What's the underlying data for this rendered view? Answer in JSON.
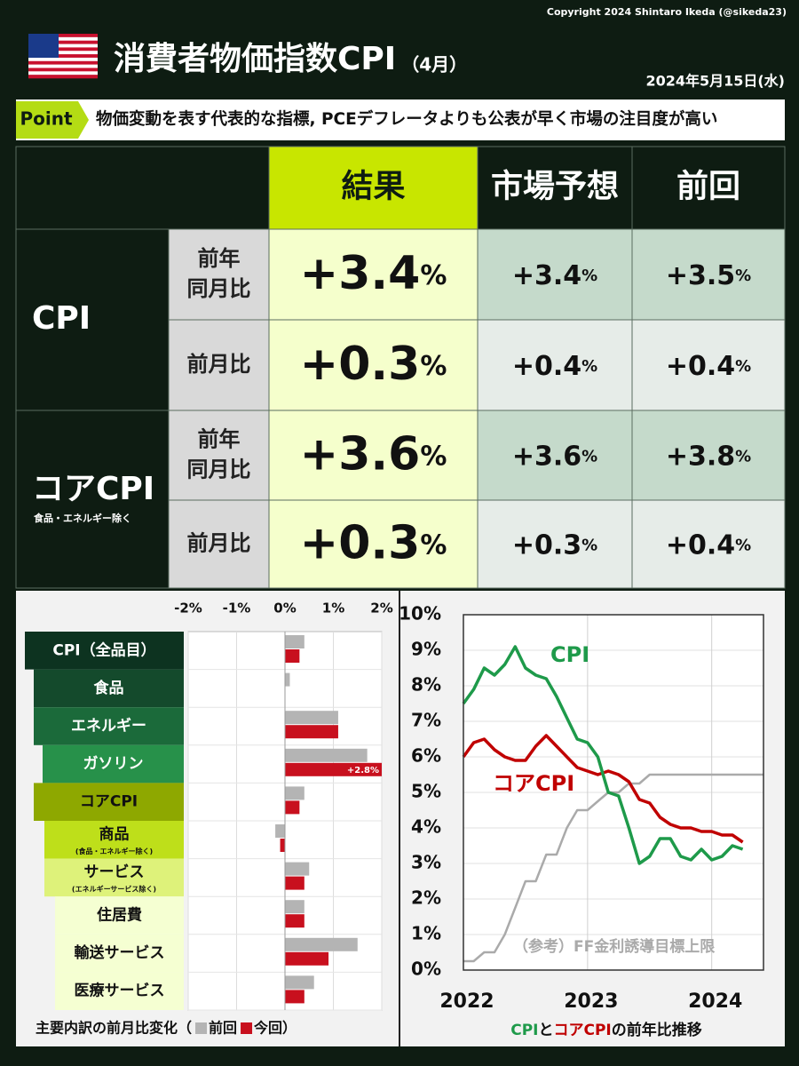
{
  "header": {
    "copyright": "Copyright 2024 Shintaro Ikeda (@sikeda23)",
    "title": "消費者物価指数CPI",
    "title_note": "（4月）",
    "date": "2024年5月15日(水)"
  },
  "point": {
    "label": "Point",
    "text": "物価変動を表す代表的な指標, PCEデフレータよりも公表が早く市場の注目度が高い"
  },
  "table": {
    "columns": [
      "結果",
      "市場予想",
      "前回"
    ],
    "unit": "%",
    "groups": [
      {
        "name": "CPI",
        "rows": [
          {
            "label": [
              "前年",
              "同月比"
            ],
            "values": [
              "+3.4",
              "+3.4",
              "+3.5"
            ]
          },
          {
            "label": [
              "前月比"
            ],
            "values": [
              "+0.3",
              "+0.4",
              "+0.4"
            ]
          }
        ]
      },
      {
        "name": "コアCPI",
        "note": "食品・エネルギー除く",
        "rows": [
          {
            "label": [
              "前年",
              "同月比"
            ],
            "values": [
              "+3.6",
              "+3.6",
              "+3.8"
            ]
          },
          {
            "label": [
              "前月比"
            ],
            "values": [
              "+0.3",
              "+0.3",
              "+0.4"
            ]
          }
        ]
      }
    ]
  },
  "chart_data": [
    {
      "type": "bar",
      "orientation": "horizontal",
      "categories": [
        "CPI（全品目）",
        "食品",
        "エネルギー",
        "ガソリン",
        "コアCPI",
        "商品",
        "サービス",
        "住居費",
        "輸送サービス",
        "医療サービス"
      ],
      "category_notes": [
        null,
        null,
        null,
        null,
        null,
        "(食品・エネルギー除く)",
        "(エネルギーサービス除く)",
        null,
        null,
        null
      ],
      "category_colors": [
        "#0d3320",
        "#144a2c",
        "#1b6a3a",
        "#27914a",
        "#8ea800",
        "#bedf1a",
        "#def27a",
        "#f5ffd2",
        "#f5ffd2",
        "#f5ffd2"
      ],
      "series": [
        {
          "name": "前回",
          "color": "#b4b4b4",
          "values": [
            0.4,
            0.1,
            1.1,
            1.7,
            0.4,
            -0.2,
            0.5,
            0.4,
            1.5,
            0.6
          ]
        },
        {
          "name": "今回",
          "color": "#c8101e",
          "values": [
            0.3,
            0,
            1.1,
            2.8,
            0.3,
            -0.1,
            0.4,
            0.4,
            0.9,
            0.4
          ],
          "value_labels": [
            null,
            null,
            null,
            "+2.8%",
            null,
            null,
            null,
            null,
            null,
            null
          ]
        }
      ],
      "xlim": [
        -2,
        2
      ],
      "xticks": [
        {
          "value": -2,
          "label": "-2%"
        },
        {
          "value": -1,
          "label": "-1%"
        },
        {
          "value": 0,
          "label": "0%"
        },
        {
          "value": 1,
          "label": "1%"
        },
        {
          "value": 2,
          "label": "2%"
        }
      ],
      "grid": true,
      "title": "主要内訳の前月比変化（",
      "title_end": "）"
    },
    {
      "type": "line",
      "x": [
        2022,
        2022.083,
        2022.167,
        2022.25,
        2022.333,
        2022.417,
        2022.5,
        2022.583,
        2022.667,
        2022.75,
        2022.833,
        2022.917,
        2023,
        2023.083,
        2023.167,
        2023.25,
        2023.333,
        2023.417,
        2023.5,
        2023.583,
        2023.667,
        2023.75,
        2023.833,
        2023.917,
        2024,
        2024.083,
        2024.167,
        2024.25,
        2024.333,
        2024.417
      ],
      "series": [
        {
          "name": "CPI",
          "color": "#1e9a4a",
          "values": [
            7.5,
            7.9,
            8.5,
            8.3,
            8.6,
            9.1,
            8.5,
            8.3,
            8.2,
            7.7,
            7.1,
            6.5,
            6.4,
            6.0,
            5.0,
            4.9,
            4.0,
            3.0,
            3.2,
            3.7,
            3.7,
            3.2,
            3.1,
            3.4,
            3.1,
            3.2,
            3.5,
            3.4,
            null,
            null
          ]
        },
        {
          "name": "コアCPI",
          "color": "#c00000",
          "values": [
            6.0,
            6.4,
            6.5,
            6.2,
            6.0,
            5.9,
            5.9,
            6.3,
            6.6,
            6.3,
            6.0,
            5.7,
            5.6,
            5.5,
            5.6,
            5.5,
            5.3,
            4.8,
            4.7,
            4.3,
            4.1,
            4.0,
            4.0,
            3.9,
            3.9,
            3.8,
            3.8,
            3.6,
            null,
            null
          ]
        },
        {
          "name": "（参考）FF金利誘導目標上限",
          "color": "#aaaaaa",
          "values": [
            0.25,
            0.25,
            0.5,
            0.5,
            1.0,
            1.75,
            2.5,
            2.5,
            3.25,
            3.25,
            4.0,
            4.5,
            4.5,
            4.75,
            5.0,
            5.0,
            5.25,
            5.25,
            5.5,
            5.5,
            5.5,
            5.5,
            5.5,
            5.5,
            5.5,
            5.5,
            5.5,
            5.5,
            5.5,
            5.5
          ]
        }
      ],
      "xlim": [
        2022,
        2024.417
      ],
      "xticks": [
        2022,
        2023,
        2024
      ],
      "ylim": [
        0,
        10
      ],
      "yticks": [
        {
          "value": 0,
          "label": "0%"
        },
        {
          "value": 1,
          "label": "1%"
        },
        {
          "value": 2,
          "label": "2%"
        },
        {
          "value": 3,
          "label": "3%"
        },
        {
          "value": 4,
          "label": "4%"
        },
        {
          "value": 5,
          "label": "5%"
        },
        {
          "value": 6,
          "label": "6%"
        },
        {
          "value": 7,
          "label": "7%"
        },
        {
          "value": 8,
          "label": "8%"
        },
        {
          "value": 9,
          "label": "9%"
        },
        {
          "value": 10,
          "label": "10%"
        }
      ],
      "grid": true,
      "title_parts": [
        {
          "text": "CPI",
          "color": "#1e9a4a"
        },
        {
          "text": "と",
          "color": "#111111"
        },
        {
          "text": "コアCPI",
          "color": "#c00000"
        },
        {
          "text": "の前年比推移",
          "color": "#111111"
        }
      ]
    }
  ]
}
